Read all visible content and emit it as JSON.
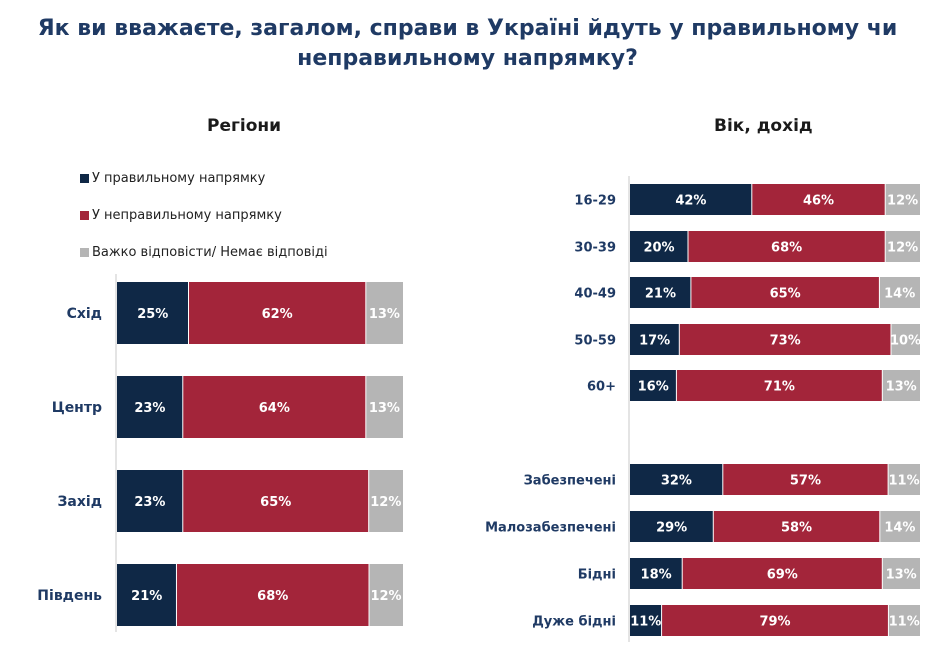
{
  "title": {
    "line1": "Як ви вважаєте, загалом, справи в Україні йдуть у правильному чи",
    "line2": "неправильному напрямку?"
  },
  "panels": {
    "left_title": "Регіони",
    "right_title": "Вік, дохід"
  },
  "legend": [
    {
      "label": "У правильному напрямку",
      "color": "#0f2846"
    },
    {
      "label": "У неправильному напрямку",
      "color": "#a3253a"
    },
    {
      "label": "Важко відповісти/ Немає відповіді",
      "color": "#b5b5b5"
    }
  ],
  "chart_data": [
    {
      "type": "bar",
      "orientation": "horizontal",
      "stacked": true,
      "title": "Регіони",
      "categories": [
        "Схід",
        "Центр",
        "Захід",
        "Південь"
      ],
      "series": [
        {
          "name": "У правильному напрямку",
          "values": [
            25,
            23,
            23,
            21
          ],
          "color": "#0f2846"
        },
        {
          "name": "У неправильному напрямку",
          "values": [
            62,
            64,
            65,
            68
          ],
          "color": "#a3253a"
        },
        {
          "name": "Важко відповісти/ Немає відповіді",
          "values": [
            13,
            13,
            12,
            12
          ],
          "color": "#b5b5b5"
        }
      ],
      "value_suffix": "%",
      "legend_position": "top"
    },
    {
      "type": "bar",
      "orientation": "horizontal",
      "stacked": true,
      "title": "Вік, дохід",
      "categories": [
        "16-29",
        "30-39",
        "40-49",
        "50-59",
        "60+",
        "Забезпечені",
        "Малозабезпечені",
        "Бідні",
        "Дуже бідні"
      ],
      "series": [
        {
          "name": "У правильному напрямку",
          "values": [
            42,
            20,
            21,
            17,
            16,
            32,
            29,
            18,
            11
          ],
          "color": "#0f2846"
        },
        {
          "name": "У неправильному напрямку",
          "values": [
            46,
            68,
            65,
            73,
            71,
            57,
            58,
            69,
            79
          ],
          "color": "#a3253a"
        },
        {
          "name": "Важко відповісти/ Немає відповіді",
          "values": [
            12,
            12,
            14,
            10,
            13,
            11,
            14,
            13,
            11
          ],
          "color": "#b5b5b5"
        }
      ],
      "value_suffix": "%"
    }
  ]
}
